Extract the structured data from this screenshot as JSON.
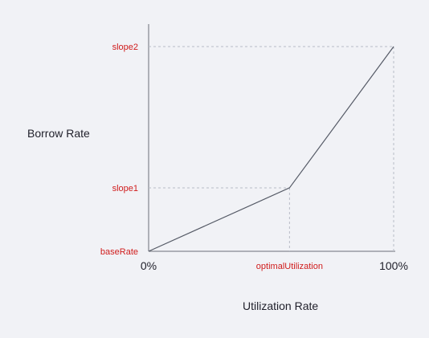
{
  "chart_data": {
    "type": "line",
    "title": "",
    "xlabel": "Utilization Rate",
    "ylabel": "Borrow Rate",
    "grid": false,
    "x": [
      0,
      0.575,
      1
    ],
    "y": [
      0,
      0.31,
      1
    ],
    "series": [
      {
        "values": [
          0,
          0.31,
          1
        ]
      }
    ],
    "x_ticks": [
      {
        "value": 0,
        "label": "0%",
        "kind": "plain"
      },
      {
        "value": 0.575,
        "label": "optimalUtilization",
        "kind": "marker"
      },
      {
        "value": 1,
        "label": "100%",
        "kind": "plain"
      }
    ],
    "y_ticks": [
      {
        "value": 0,
        "label": "baseRate"
      },
      {
        "value": 0.31,
        "label": "slope1"
      },
      {
        "value": 1,
        "label": "slope2"
      }
    ],
    "xlim": [
      0,
      1
    ],
    "ylim": [
      0,
      1
    ],
    "colors": {
      "line": "#555a66",
      "axis": "#6a6e78",
      "guide": "#b8bcc6",
      "marker_label": "#d01c1c",
      "text": "#1f1f2a"
    }
  }
}
